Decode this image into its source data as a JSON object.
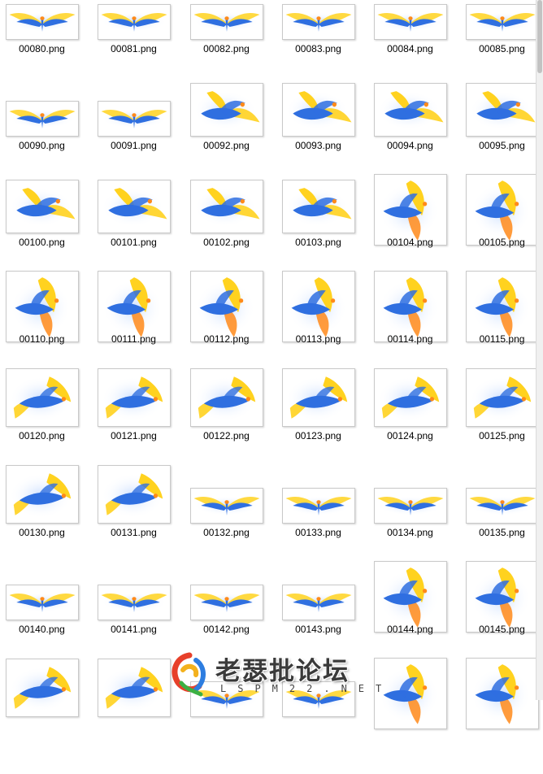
{
  "files": [
    {
      "name": "00080.png",
      "pose": "spread"
    },
    {
      "name": "00081.png",
      "pose": "spread"
    },
    {
      "name": "00082.png",
      "pose": "spread"
    },
    {
      "name": "00083.png",
      "pose": "spread"
    },
    {
      "name": "00084.png",
      "pose": "spread"
    },
    {
      "name": "00085.png",
      "pose": "spread"
    },
    {
      "name": "00090.png",
      "pose": "spread"
    },
    {
      "name": "00091.png",
      "pose": "spread"
    },
    {
      "name": "00092.png",
      "pose": "dive"
    },
    {
      "name": "00093.png",
      "pose": "dive"
    },
    {
      "name": "00094.png",
      "pose": "dive"
    },
    {
      "name": "00095.png",
      "pose": "dive"
    },
    {
      "name": "00100.png",
      "pose": "dive"
    },
    {
      "name": "00101.png",
      "pose": "dive"
    },
    {
      "name": "00102.png",
      "pose": "dive"
    },
    {
      "name": "00103.png",
      "pose": "dive"
    },
    {
      "name": "00104.png",
      "pose": "rise"
    },
    {
      "name": "00105.png",
      "pose": "rise"
    },
    {
      "name": "00110.png",
      "pose": "rise"
    },
    {
      "name": "00111.png",
      "pose": "rise"
    },
    {
      "name": "00112.png",
      "pose": "rise"
    },
    {
      "name": "00113.png",
      "pose": "rise"
    },
    {
      "name": "00114.png",
      "pose": "rise"
    },
    {
      "name": "00115.png",
      "pose": "rise"
    },
    {
      "name": "00120.png",
      "pose": "glide"
    },
    {
      "name": "00121.png",
      "pose": "glide"
    },
    {
      "name": "00122.png",
      "pose": "glide"
    },
    {
      "name": "00123.png",
      "pose": "glide"
    },
    {
      "name": "00124.png",
      "pose": "glide"
    },
    {
      "name": "00125.png",
      "pose": "glide"
    },
    {
      "name": "00130.png",
      "pose": "glide"
    },
    {
      "name": "00131.png",
      "pose": "glide"
    },
    {
      "name": "00132.png",
      "pose": "spread"
    },
    {
      "name": "00133.png",
      "pose": "spread"
    },
    {
      "name": "00134.png",
      "pose": "spread"
    },
    {
      "name": "00135.png",
      "pose": "spread"
    },
    {
      "name": "00140.png",
      "pose": "spread"
    },
    {
      "name": "00141.png",
      "pose": "spread"
    },
    {
      "name": "00142.png",
      "pose": "spread"
    },
    {
      "name": "00143.png",
      "pose": "spread"
    },
    {
      "name": "00144.png",
      "pose": "rise"
    },
    {
      "name": "00145.png",
      "pose": "rise"
    },
    {
      "name": "",
      "pose": "glide"
    },
    {
      "name": "",
      "pose": "glide"
    },
    {
      "name": "",
      "pose": "spread"
    },
    {
      "name": "",
      "pose": "spread"
    },
    {
      "name": "",
      "pose": "rise"
    },
    {
      "name": "",
      "pose": "rise"
    }
  ],
  "colors": {
    "blue": "#2f6fe0",
    "light_blue": "#9fc3ff",
    "yellow": "#ffd21f",
    "orange": "#ff8a1a",
    "white": "#ffffff"
  },
  "watermark": {
    "main": "老瑟批论坛",
    "sub": "LSPM22.NET",
    "icon": "swirl-logo-icon"
  }
}
